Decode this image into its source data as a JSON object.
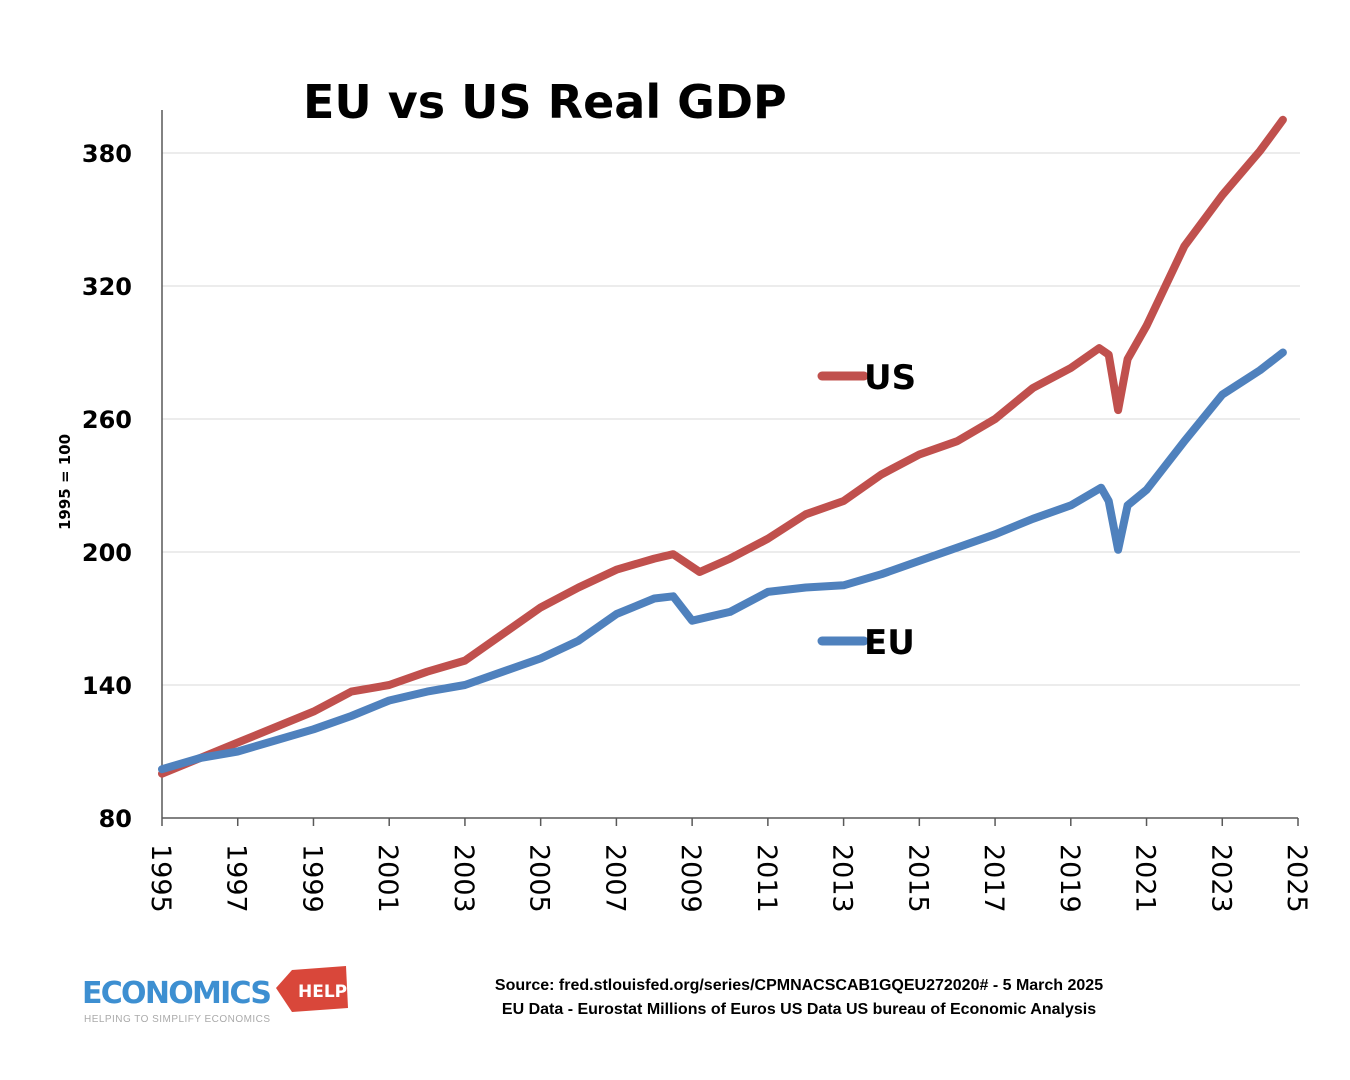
{
  "chart_data": {
    "type": "line",
    "title": "EU vs US Real GDP",
    "ylabel": "1995 = 100",
    "xlabel": "",
    "ylim": [
      80,
      400
    ],
    "xlim": [
      1995,
      2025
    ],
    "yticks": [
      80,
      140,
      200,
      260,
      320,
      380
    ],
    "xticks": [
      "1995",
      "1997",
      "1999",
      "2001",
      "2003",
      "2005",
      "2007",
      "2009",
      "2011",
      "2013",
      "2015",
      "2017",
      "2019",
      "2021",
      "2023",
      "2025"
    ],
    "grid": "horizontal",
    "legend": "inline",
    "series": [
      {
        "name": "US",
        "color": "#c0504d",
        "x": [
          1995,
          1997,
          1999,
          2000,
          2001,
          2002,
          2003,
          2004,
          2005,
          2006,
          2007,
          2008,
          2008.5,
          2009.2,
          2010,
          2011,
          2012,
          2013,
          2014,
          2015,
          2016,
          2017,
          2018,
          2019,
          2019.75,
          2020,
          2020.25,
          2020.5,
          2021,
          2022,
          2023,
          2024,
          2024.6
        ],
        "values": [
          100,
          114,
          128,
          137,
          140,
          146,
          151,
          163,
          175,
          184,
          192,
          197,
          199,
          191,
          197,
          206,
          217,
          223,
          235,
          244,
          250,
          260,
          274,
          283,
          292,
          289,
          264,
          287,
          302,
          338,
          361,
          381,
          395
        ]
      },
      {
        "name": "EU",
        "color": "#4f81bd",
        "x": [
          1995,
          1996,
          1997,
          1998,
          1999,
          2000,
          2001,
          2002,
          2003,
          2004,
          2005,
          2006,
          2007,
          2008,
          2008.5,
          2009,
          2010,
          2011,
          2012,
          2013,
          2014,
          2015,
          2016,
          2017,
          2018,
          2019,
          2019.8,
          2020,
          2020.25,
          2020.5,
          2021,
          2022,
          2023,
          2024,
          2024.6
        ],
        "values": [
          102,
          107,
          110,
          115,
          120,
          126,
          133,
          137,
          140,
          146,
          152,
          160,
          172,
          179,
          180,
          169,
          173,
          182,
          184,
          185,
          190,
          196,
          202,
          208,
          215,
          221,
          229,
          223,
          201,
          221,
          228,
          250,
          271,
          282,
          290
        ]
      }
    ]
  },
  "source": {
    "line1": "Source: fred.stlouisfed.org/series/CPMNACSCAB1GQEU272020# - 5 March 2025",
    "line2": "EU Data - Eurostat Millions of Euros US Data US bureau of Economic Analysis"
  },
  "logo": {
    "main": "ECONOMICS",
    "tag": "HELP",
    "tagline": "HELPING TO SIMPLIFY ECONOMICS",
    "colors": {
      "main": "#3d8fd1",
      "tag": "#d9473a"
    }
  },
  "colors": {
    "grid": "#d9d9d9",
    "axis": "#595959"
  }
}
